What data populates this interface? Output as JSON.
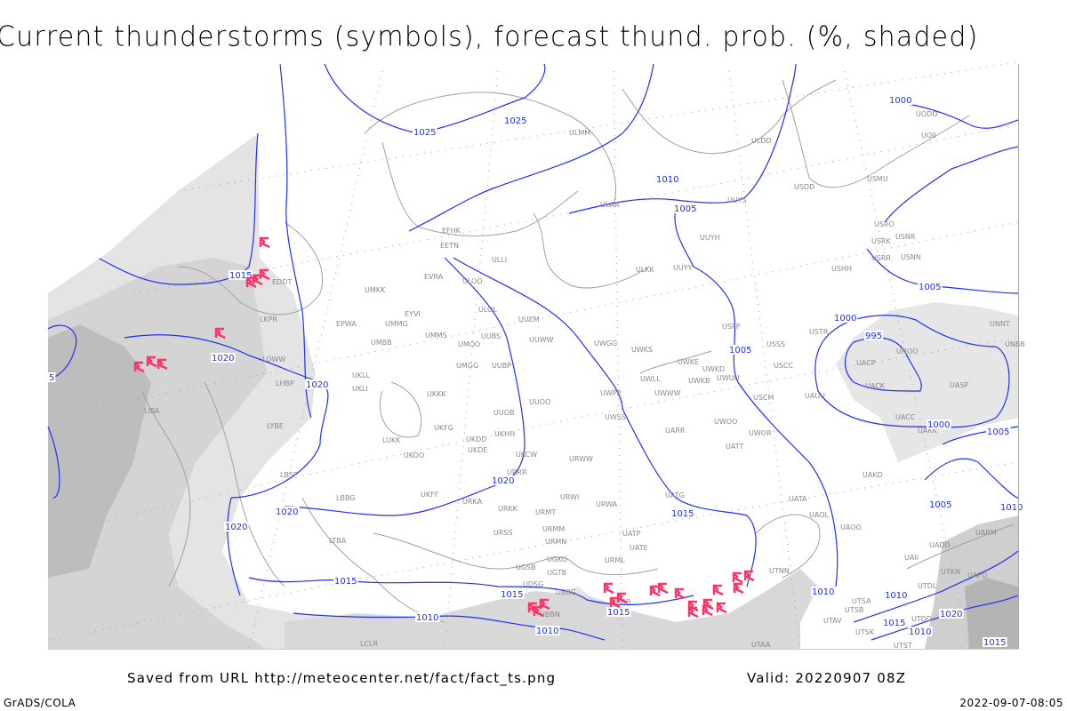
{
  "title": "Current thunderstorms (symbols), forecast thund. prob. (%, shaded)",
  "footer": {
    "saved_from": "Saved from URL http://meteocenter.net/fact/fact_ts.png",
    "valid": "Valid: 20220907 08Z",
    "software": "GrADS/COLA",
    "timestamp": "2022-09-07-08:05"
  },
  "colors": {
    "isobar": "#1f2fff",
    "thunderstorm_symbol": "#ff3366",
    "coastline": "#a0a0a0",
    "shading_light": "#e6e6e6",
    "shading_mid": "#d2d2d2",
    "shading_dark": "#b4b4b4"
  },
  "legend": {
    "isobars": "sea-level pressure contours (hPa)",
    "symbols": "thunderstorm-icon"
  },
  "stations": [
    "EFHK",
    "EETN",
    "ULLI",
    "EVRA",
    "ULOO",
    "UMKK",
    "EYVI",
    "ULOL",
    "EPWA",
    "UMMG",
    "UUEM",
    "UMBB",
    "UMMS",
    "UMOO",
    "UUBS",
    "UUWW",
    "UWGG",
    "UWKS",
    "UMGG",
    "UUBP",
    "UWKE",
    "UKLL",
    "UWKB",
    "UKLI",
    "UWLL",
    "UKKK",
    "UWWW",
    "UUOO",
    "UWPP",
    "UUOB",
    "UWSS",
    "UKHH",
    "UARR",
    "UKFG",
    "UKDD",
    "LUKK",
    "UKDE",
    "UKOO",
    "UKCW",
    "URWW",
    "ULDD",
    "UODD",
    "UOII",
    "USDD",
    "USMU",
    "UUYS",
    "USRO",
    "USNR",
    "USRK",
    "USRR",
    "USNN",
    "UUYH",
    "ULKK",
    "UUYY",
    "USHH",
    "USPP",
    "USTR",
    "USSS",
    "UNOO",
    "UACP",
    "USCC",
    "UNNT",
    "UNBB",
    "UWUU",
    "UACK",
    "UASP",
    "USCM",
    "UAUU",
    "UWOO",
    "UACC",
    "UWOR",
    "UAKK",
    "UATT",
    "UAKD",
    "UATA",
    "UAOL",
    "UAOO",
    "UARM",
    "UADD",
    "UAII",
    "UTNN",
    "UTKN",
    "UAFO",
    "UTDL",
    "UTSA",
    "UTSB",
    "UTAV",
    "UTSK",
    "UTDD",
    "UTAA",
    "UTST",
    "LBSF",
    "URRR",
    "UKFF",
    "LBBG",
    "URKA",
    "URWI",
    "URKK",
    "URWA",
    "UATG",
    "URMT",
    "URSS",
    "URMM",
    "LTBA",
    "URMN",
    "UATP",
    "UATE",
    "UGKO",
    "URML",
    "UGSB",
    "UGTB",
    "UDSG",
    "UBBG",
    "UBBB",
    "UBBN",
    "LCLR",
    "EDDT",
    "LKPR",
    "LOWW",
    "LHBP",
    "LIRA",
    "LYBE",
    "ULMM",
    "ULAA",
    "UWKD"
  ],
  "isobar_labels": [
    "1025",
    "1025",
    "1010",
    "1005",
    "1015",
    "1020",
    "1020",
    "5",
    "1005",
    "1000",
    "995",
    "1000",
    "1005",
    "1005",
    "1000",
    "1020",
    "1020",
    "1020",
    "1015",
    "1015",
    "1015",
    "1010",
    "1010",
    "1015",
    "1010",
    "1005",
    "1010",
    "1010",
    "1020",
    "1015",
    "1010",
    "1015"
  ]
}
